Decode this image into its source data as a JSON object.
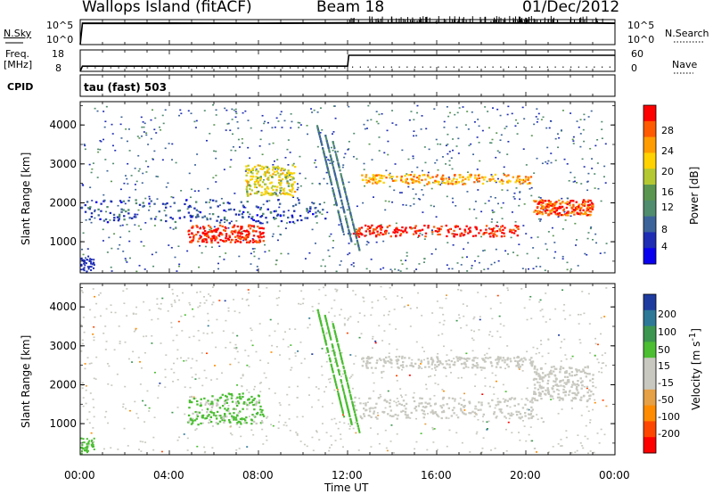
{
  "header": {
    "title": "Wallops Island (fitACF)",
    "beam": "Beam 18",
    "date": "01/Dec/2012"
  },
  "top_panels": {
    "nsky_label": "N.Sky",
    "nsky_scale_top": "10^5",
    "nsky_scale_bottom": "10^0",
    "nsearch_label": "N.Search",
    "nsearch_scale_top": "10^5",
    "nsearch_scale_bottom": "10^0",
    "freq_label": "Freq.",
    "freq_units": "[MHz]",
    "freq_ticks": [
      "18",
      "8"
    ],
    "nave_label": "Nave",
    "nave_ticks": [
      "60",
      "0"
    ],
    "cpid_label": "CPID",
    "cpid_text": "tau (fast) 503"
  },
  "power_panel": {
    "ylabel": "Slant Range [km]",
    "colorbar_label": "Power [dB]",
    "colorbar_ticks": [
      "28",
      "24",
      "20",
      "16",
      "12",
      "8",
      "4"
    ],
    "colorbar_colors": [
      "#ff0000",
      "#ff5a00",
      "#ff9c00",
      "#ffd200",
      "#b4c832",
      "#5a9650",
      "#508c6e",
      "#3c649a",
      "#1e2db4",
      "#0a00f0"
    ]
  },
  "velocity_panel": {
    "ylabel": "Slant Range [km]",
    "colorbar_label": "Velocity [m s",
    "colorbar_sup": "-1",
    "colorbar_suffix": "]",
    "colorbar_ticks": [
      "200",
      "100",
      "50",
      "15",
      "-15",
      "-50",
      "-100",
      "-200"
    ],
    "colorbar_colors": [
      "#1e3ca0",
      "#2d7896",
      "#3c9650",
      "#4bbe32",
      "#c8c8c0",
      "#c8c8c0",
      "#e6a046",
      "#ff8c00",
      "#ff4600",
      "#ff0000"
    ]
  },
  "time_axis": {
    "ticks": [
      "00:00",
      "04:00",
      "08:00",
      "12:00",
      "16:00",
      "20:00",
      "00:00"
    ],
    "xlabel": "Time UT"
  },
  "chart_data": [
    {
      "type": "line",
      "name": "noise-panel",
      "xlabel": "",
      "ylabel": "",
      "x_range_hours": [
        0,
        24
      ],
      "series": [
        {
          "name": "N.Sky",
          "x": [
            0,
            0.1,
            1,
            4,
            8,
            12,
            16,
            20,
            23,
            24
          ],
          "values": [
            1,
            20000,
            20000,
            21000,
            20000,
            24000,
            26000,
            22000,
            24000,
            20000
          ]
        },
        {
          "name": "N.Search",
          "x": [
            0,
            0.1,
            1,
            4,
            8,
            12,
            16,
            20,
            23,
            24
          ],
          "values": [
            1,
            15000,
            15000,
            15000,
            16000,
            18000,
            19000,
            17000,
            18000,
            16000
          ]
        }
      ],
      "ylim": [
        1,
        100000
      ],
      "log_scale": true
    },
    {
      "type": "line",
      "name": "freq-nave-panel",
      "x_range_hours": [
        0,
        24
      ],
      "series": [
        {
          "name": "Freq.",
          "x": [
            0,
            0.1,
            12,
            12.05,
            24
          ],
          "values": [
            8,
            10.4,
            10.4,
            15.5,
            15.5
          ]
        },
        {
          "name": "Nave",
          "x": [
            0,
            4,
            8,
            12,
            16,
            20,
            24
          ],
          "values": [
            10,
            10,
            10,
            12,
            12,
            12,
            12
          ]
        }
      ],
      "ylim_freq": [
        8,
        18
      ],
      "ylim_nave": [
        0,
        60
      ]
    },
    {
      "type": "heatmap",
      "name": "power-rti",
      "ylabel": "Slant Range [km]",
      "x_range_hours": [
        0,
        24
      ],
      "ylim": [
        200,
        4600
      ],
      "yticks": [
        1000,
        2000,
        3000,
        4000
      ],
      "value_label": "Power [dB]",
      "value_range": [
        0,
        30
      ],
      "features": [
        {
          "t0": 0,
          "t1": 11,
          "r0": 1500,
          "r1": 2100,
          "value": 6
        },
        {
          "t0": 4.8,
          "t1": 8.2,
          "r0": 1000,
          "r1": 1450,
          "value": 28
        },
        {
          "t0": 7.4,
          "t1": 9.6,
          "r0": 2200,
          "r1": 3000,
          "value": 18
        },
        {
          "t0": 12.2,
          "t1": 19.7,
          "r0": 1150,
          "r1": 1450,
          "value": 28
        },
        {
          "t0": 12.6,
          "t1": 20.2,
          "r0": 2500,
          "r1": 2750,
          "value": 22
        },
        {
          "t0": 20.3,
          "t1": 23.0,
          "r0": 1700,
          "r1": 2100,
          "value": 26
        }
      ]
    },
    {
      "type": "heatmap",
      "name": "velocity-rti",
      "ylabel": "Slant Range [km]",
      "x_range_hours": [
        0,
        24
      ],
      "ylim": [
        200,
        4600
      ],
      "yticks": [
        1000,
        2000,
        3000,
        4000
      ],
      "value_label": "Velocity [m s-1]",
      "value_range": [
        -250,
        250
      ],
      "features": [
        {
          "t0": 4.8,
          "t1": 8.2,
          "r0": 1000,
          "r1": 1800,
          "value": 60
        },
        {
          "t0": 12.2,
          "t1": 20.3,
          "r0": 1150,
          "r1": 1700,
          "value": 0
        },
        {
          "t0": 12.6,
          "t1": 20.3,
          "r0": 2450,
          "r1": 2750,
          "value": 0
        },
        {
          "t0": 20.3,
          "t1": 23.0,
          "r0": 1600,
          "r1": 2500,
          "value": 0
        }
      ]
    }
  ]
}
